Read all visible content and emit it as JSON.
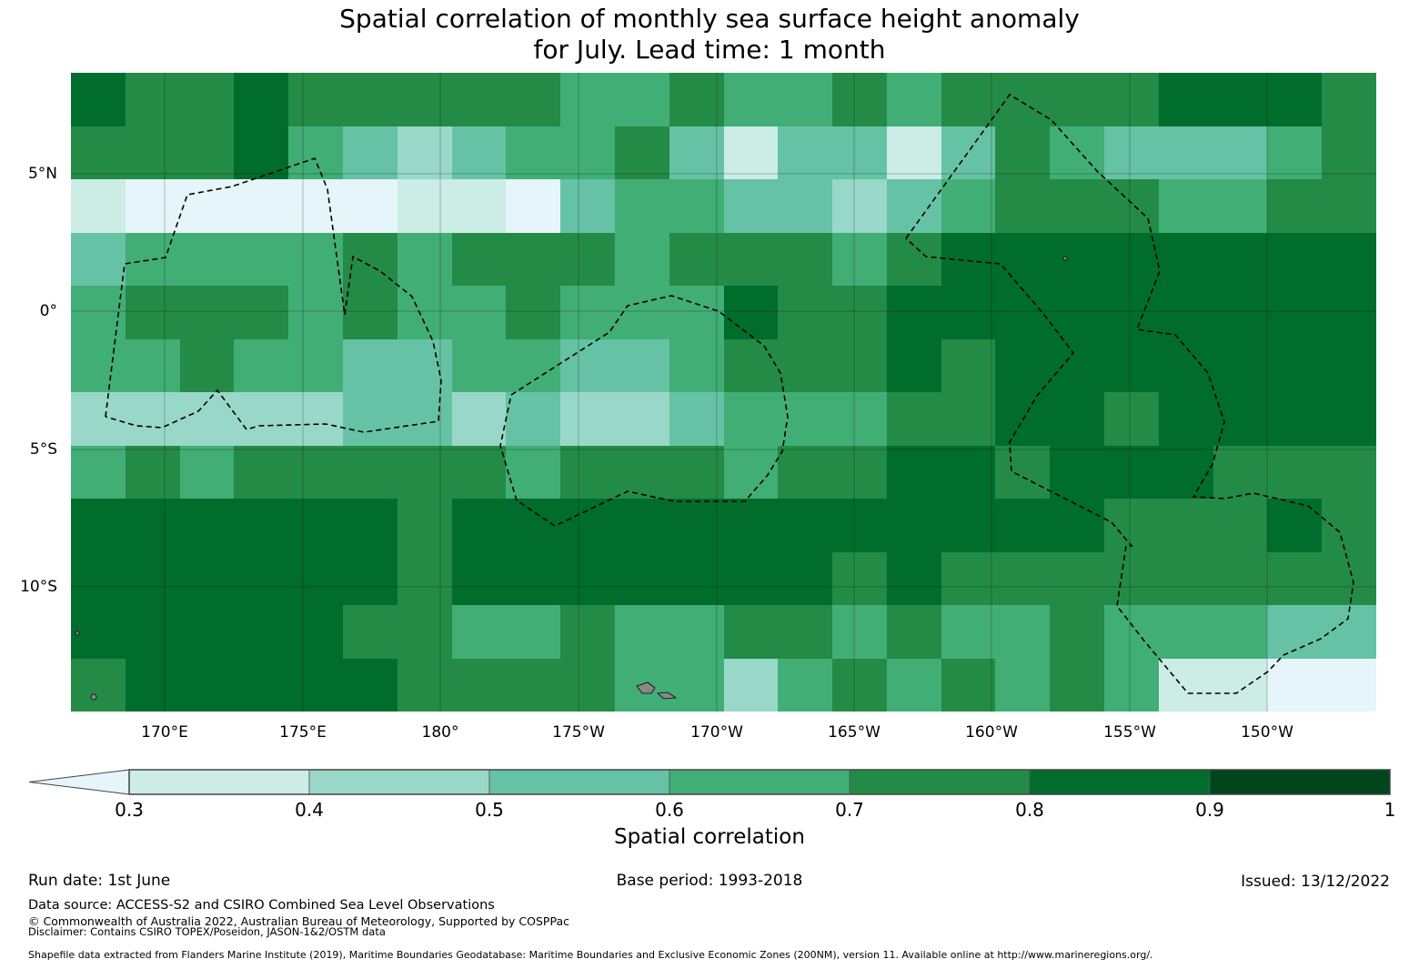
{
  "title": {
    "line1": "Spatial correlation of monthly sea surface height anomaly",
    "line2": "for July. Lead time: 1 month"
  },
  "chart_data": {
    "type": "heatmap",
    "title": "Spatial correlation of monthly sea surface height anomaly for July. Lead time: 1 month",
    "extent": {
      "lon_min": 166.7,
      "lon_max": 213.8,
      "lat_min": -14.6,
      "lat_max": 8.7
    },
    "lat_ticks": [
      "5°N",
      "0°",
      "5°S",
      "10°S"
    ],
    "lon_ticks": [
      "170°E",
      "175°E",
      "180°",
      "175°W",
      "170°W",
      "165°W",
      "160°W",
      "155°W",
      "150°W"
    ],
    "grid_note": "levels index into colorbar.bins, rows north to south, approx 2° cells",
    "levels": [
      [
        6,
        5,
        5,
        6,
        5,
        5,
        5,
        5,
        5,
        4,
        4,
        5,
        4,
        4,
        5,
        4,
        5,
        5,
        5,
        5,
        6,
        6,
        6,
        5
      ],
      [
        5,
        5,
        5,
        6,
        4,
        3,
        2,
        3,
        4,
        4,
        5,
        3,
        1,
        3,
        3,
        1,
        3,
        5,
        4,
        3,
        3,
        3,
        4,
        5
      ],
      [
        1,
        0,
        0,
        0,
        0,
        0,
        1,
        1,
        0,
        3,
        4,
        4,
        3,
        3,
        2,
        3,
        4,
        5,
        5,
        5,
        4,
        4,
        5,
        5
      ],
      [
        3,
        4,
        4,
        4,
        4,
        5,
        4,
        5,
        5,
        5,
        4,
        5,
        5,
        5,
        4,
        5,
        6,
        6,
        6,
        6,
        6,
        6,
        6,
        6
      ],
      [
        4,
        5,
        5,
        5,
        4,
        5,
        4,
        4,
        5,
        4,
        4,
        4,
        6,
        5,
        5,
        6,
        6,
        6,
        6,
        6,
        6,
        6,
        6,
        6
      ],
      [
        4,
        4,
        5,
        4,
        4,
        3,
        3,
        4,
        4,
        3,
        3,
        4,
        5,
        5,
        5,
        6,
        5,
        6,
        6,
        6,
        6,
        6,
        6,
        6
      ],
      [
        2,
        2,
        2,
        2,
        2,
        3,
        3,
        2,
        3,
        2,
        2,
        3,
        4,
        4,
        4,
        5,
        5,
        6,
        6,
        5,
        6,
        6,
        6,
        6
      ],
      [
        4,
        5,
        4,
        5,
        5,
        5,
        5,
        5,
        4,
        5,
        5,
        5,
        4,
        5,
        5,
        6,
        6,
        5,
        6,
        6,
        6,
        5,
        5,
        5
      ],
      [
        6,
        6,
        6,
        6,
        6,
        6,
        5,
        6,
        6,
        6,
        6,
        6,
        6,
        6,
        6,
        6,
        6,
        6,
        6,
        5,
        5,
        5,
        6,
        5
      ],
      [
        6,
        6,
        6,
        6,
        6,
        6,
        5,
        6,
        6,
        6,
        6,
        6,
        6,
        6,
        5,
        6,
        5,
        5,
        5,
        5,
        5,
        5,
        5,
        5
      ],
      [
        6,
        6,
        6,
        6,
        6,
        5,
        5,
        4,
        4,
        5,
        4,
        4,
        5,
        5,
        4,
        5,
        4,
        4,
        5,
        4,
        4,
        4,
        3,
        3
      ],
      [
        5,
        6,
        6,
        6,
        6,
        6,
        5,
        5,
        5,
        5,
        4,
        4,
        2,
        4,
        5,
        4,
        5,
        4,
        5,
        4,
        1,
        1,
        0,
        0
      ]
    ],
    "colorbar": {
      "label": "Spatial correlation",
      "ticks": [
        "0.3",
        "0.4",
        "0.5",
        "0.6",
        "0.7",
        "0.8",
        "0.9",
        "1"
      ],
      "bins": [
        {
          "range": "<0.3",
          "color": "#e5f5f9"
        },
        {
          "range": "0.3-0.4",
          "color": "#ccece6"
        },
        {
          "range": "0.4-0.5",
          "color": "#99d8c9"
        },
        {
          "range": "0.5-0.6",
          "color": "#66c2a4"
        },
        {
          "range": "0.6-0.7",
          "color": "#41ae76"
        },
        {
          "range": "0.7-0.8",
          "color": "#238b45"
        },
        {
          "range": "0.8-0.9",
          "color": "#006d2c"
        },
        {
          "range": "0.9-1",
          "color": "#00441b"
        }
      ]
    }
  },
  "footer": {
    "run_date": "Run date: 1st June",
    "base_period": "Base period: 1993-2018",
    "issued": "Issued: 13/12/2022",
    "data_source": "Data source: ACCESS-S2 and CSIRO Combined Sea Level Observations",
    "copyright": "© Commonwealth of Australia 2022, Australian Bureau of Meteorology, Supported by COSPPac",
    "disclaimer": "Disclaimer: Contains CSIRO TOPEX/Poseidon, JASON-1&2/OSTM data",
    "shapefile": "Shapefile data extracted from Flanders Marine Institute (2019), Maritime Boundaries Geodatabase: Maritime Boundaries and Exclusive Economic Zones (200NM), version 11. Available online at http://www.marineregions.org/."
  }
}
